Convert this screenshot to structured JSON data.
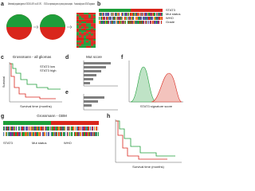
{
  "panels": {
    "a": {
      "label": "a",
      "left_text": "Differentially regulated genes in STAT3KO-GPC vs WT-GPC",
      "mid_text": "STAT3 on expressed genes in primary tumor samples",
      "right_text": "Functionally tuned STAT3 signature"
    },
    "b": {
      "label": "b",
      "legend": [
        "STAT3",
        "Mut status",
        "WHO",
        "Grade"
      ]
    },
    "c": {
      "label": "c",
      "title": "Grossmann - all gliomas",
      "x_label": "Survival time (months)",
      "y_label": "Survival",
      "legend": [
        "STAT3 low",
        "STAT3 high"
      ]
    },
    "d": {
      "label": "d",
      "title": "Mut score"
    },
    "e": {
      "label": "e"
    },
    "f": {
      "label": "f",
      "x_label": "STAT3 signature score"
    },
    "g": {
      "label": "g",
      "title": "Grossmann - GBM",
      "legend": [
        "STAT3",
        "Mut status",
        "WHO"
      ]
    },
    "h": {
      "label": "h",
      "x_label": "Survival time (months)"
    }
  }
}
